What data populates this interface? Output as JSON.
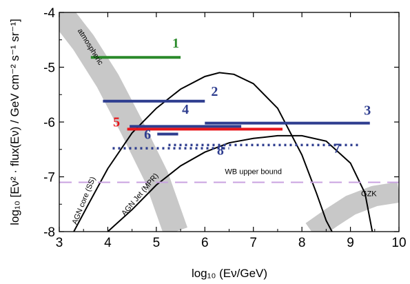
{
  "chart_data": {
    "type": "line",
    "xlabel": "log₁₀ (Eν/GeV)",
    "ylabel": "log₁₀ [Eν² · flux(Eν) / GeV cm⁻² s⁻¹ sr⁻¹]",
    "xlim": [
      3,
      10
    ],
    "ylim": [
      -8,
      -4
    ],
    "xticks": [
      "3",
      "4",
      "5",
      "6",
      "7",
      "8",
      "9",
      "10"
    ],
    "yticks": [
      "-4",
      "-5",
      "-6",
      "-7",
      "-8"
    ],
    "grid": false,
    "colors": {
      "green": "#2a8a2a",
      "blue": "#2e3d8f",
      "red": "#e8161b",
      "band": "#c8c8c8",
      "wb": "#c8a2e0",
      "curve": "#000000"
    },
    "bands": [
      {
        "label": "atmospheric",
        "points": [
          [
            3.02,
            -4.0
          ],
          [
            3.5,
            -4.55
          ],
          [
            4.0,
            -5.25
          ],
          [
            4.5,
            -6.1
          ],
          [
            5.0,
            -7.0
          ],
          [
            5.4,
            -8.0
          ]
        ],
        "width": 0.25
      },
      {
        "label": "GZK",
        "points": [
          [
            8.2,
            -8.0
          ],
          [
            8.6,
            -7.75
          ],
          [
            9.0,
            -7.52
          ],
          [
            9.5,
            -7.35
          ],
          [
            10.0,
            -7.28
          ]
        ],
        "width": 0.2
      }
    ],
    "curves": [
      {
        "label": "AGN core (SS)",
        "x": [
          3.3,
          3.6,
          4.0,
          4.5,
          5.0,
          5.5,
          6.0,
          6.3,
          6.6,
          7.0,
          7.5,
          8.0,
          8.3,
          8.5,
          8.62
        ],
        "y": [
          -8.0,
          -7.5,
          -6.85,
          -6.2,
          -5.75,
          -5.4,
          -5.17,
          -5.1,
          -5.13,
          -5.3,
          -5.75,
          -6.6,
          -7.3,
          -7.8,
          -8.0
        ]
      },
      {
        "label": "AGN Jet (MPR)",
        "x": [
          4.0,
          4.5,
          5.0,
          5.5,
          6.0,
          6.5,
          7.0,
          7.5,
          8.0,
          8.5,
          9.0,
          9.3,
          9.45
        ],
        "y": [
          -8.0,
          -7.6,
          -7.15,
          -6.8,
          -6.55,
          -6.38,
          -6.3,
          -6.25,
          -6.25,
          -6.35,
          -6.75,
          -7.3,
          -8.0
        ]
      }
    ],
    "wb_bound": {
      "label": "WB upper bound",
      "y": -7.1,
      "x": [
        3.0,
        10.0
      ]
    },
    "series": [
      {
        "name": "1",
        "x": [
          3.65,
          5.5
        ],
        "y": -4.82,
        "color": "#2a8a2a",
        "style": "solid"
      },
      {
        "name": "2",
        "x": [
          3.9,
          6.0
        ],
        "y": -5.62,
        "color": "#2e3d8f",
        "style": "solid"
      },
      {
        "name": "3",
        "x": [
          6.0,
          9.4
        ],
        "y": -6.02,
        "color": "#2e3d8f",
        "style": "solid"
      },
      {
        "name": "4",
        "x": [
          4.45,
          6.75
        ],
        "y": -6.08,
        "color": "#2e3d8f",
        "style": "solid"
      },
      {
        "name": "5",
        "x": [
          4.4,
          7.6
        ],
        "y": -6.13,
        "color": "#e8161b",
        "style": "solid"
      },
      {
        "name": "6",
        "x": [
          5.02,
          5.45
        ],
        "y": -6.22,
        "color": "#2e3d8f",
        "style": "solid"
      },
      {
        "name": "7",
        "x": [
          5.25,
          9.2
        ],
        "y": -6.42,
        "color": "#2e3d8f",
        "style": "dotted"
      },
      {
        "name": "8",
        "x": [
          4.1,
          6.5
        ],
        "y": -6.48,
        "color": "#2e3d8f",
        "style": "dotted"
      }
    ],
    "number_labels": [
      {
        "text": "1",
        "x": 5.4,
        "y": -4.64,
        "color": "#2a8a2a"
      },
      {
        "text": "2",
        "x": 6.2,
        "y": -5.52,
        "color": "#2e3d8f"
      },
      {
        "text": "3",
        "x": 9.35,
        "y": -5.87,
        "color": "#2e3d8f"
      },
      {
        "text": "4",
        "x": 5.6,
        "y": -5.85,
        "color": "#2e3d8f"
      },
      {
        "text": "5",
        "x": 4.18,
        "y": -6.08,
        "color": "#e8161b"
      },
      {
        "text": "6",
        "x": 4.82,
        "y": -6.31,
        "color": "#2e3d8f"
      },
      {
        "text": "7",
        "x": 8.72,
        "y": -6.56,
        "color": "#2e3d8f"
      },
      {
        "text": "8",
        "x": 6.32,
        "y": -6.6,
        "color": "#2e3d8f"
      }
    ]
  }
}
